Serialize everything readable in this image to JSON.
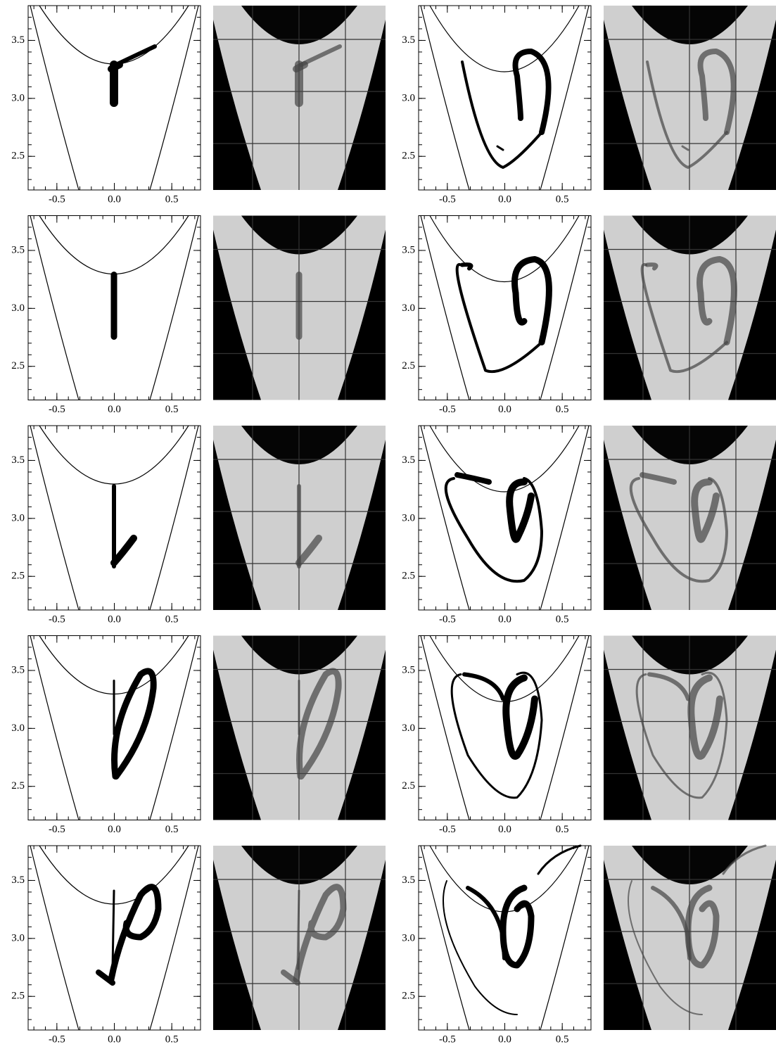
{
  "chart_data": [
    {
      "type": "scatter",
      "xlim": [
        -0.75,
        0.75
      ],
      "ylim": [
        2.21,
        3.8
      ],
      "xticks": [
        -0.5,
        {
          "value": 0,
          "label": "0.0"
        },
        0.5
      ],
      "yticks": [
        2.5,
        {
          "value": 3,
          "label": "3.0"
        },
        3.5
      ]
    },
    {
      "type": "scatter",
      "xlim": [
        -0.75,
        0.75
      ],
      "ylim": [
        2.21,
        3.8
      ],
      "xticks": [
        -0.5,
        {
          "value": 0,
          "label": "0.0"
        },
        0.5
      ],
      "yticks": [
        2.5,
        {
          "value": 3,
          "label": "3.0"
        },
        3.5
      ]
    },
    {
      "type": "scatter",
      "xlim": [
        -0.75,
        0.75
      ],
      "ylim": [
        2.21,
        3.8
      ],
      "xticks": [
        -0.5,
        {
          "value": 0,
          "label": "0.0"
        },
        0.5
      ],
      "yticks": [
        2.5,
        {
          "value": 3,
          "label": "3.0"
        },
        3.5
      ]
    },
    {
      "type": "scatter",
      "xlim": [
        -0.75,
        0.75
      ],
      "ylim": [
        2.21,
        3.8
      ],
      "xticks": [
        -0.5,
        {
          "value": 0,
          "label": "0.0"
        },
        0.5
      ],
      "yticks": [
        2.5,
        {
          "value": 3,
          "label": "3.0"
        },
        3.5
      ]
    },
    {
      "type": "scatter",
      "xlim": [
        -0.75,
        0.75
      ],
      "ylim": [
        2.21,
        3.8
      ],
      "xticks": [
        -0.5,
        {
          "value": 0,
          "label": "0.0"
        },
        0.5
      ],
      "yticks": [
        2.5,
        {
          "value": 3,
          "label": "3.0"
        },
        3.5
      ]
    },
    {
      "type": "scatter",
      "xlim": [
        -0.75,
        0.75
      ],
      "ylim": [
        2.21,
        3.8
      ],
      "xticks": [
        -0.5,
        {
          "value": 0,
          "label": "0.0"
        },
        0.5
      ],
      "yticks": [
        2.5,
        {
          "value": 3,
          "label": "3.0"
        },
        3.5
      ]
    },
    {
      "type": "scatter",
      "xlim": [
        -0.75,
        0.75
      ],
      "ylim": [
        2.21,
        3.8
      ],
      "xticks": [
        -0.5,
        {
          "value": 0,
          "label": "0.0"
        },
        0.5
      ],
      "yticks": [
        2.5,
        {
          "value": 3,
          "label": "3.0"
        },
        3.5
      ]
    },
    {
      "type": "scatter",
      "xlim": [
        -0.75,
        0.75
      ],
      "ylim": [
        2.21,
        3.8
      ],
      "xticks": [
        -0.5,
        {
          "value": 0,
          "label": "0.0"
        },
        0.5
      ],
      "yticks": [
        2.5,
        {
          "value": 3,
          "label": "3.0"
        },
        3.5
      ]
    },
    {
      "type": "scatter",
      "xlim": [
        -0.75,
        0.75
      ],
      "ylim": [
        2.21,
        3.8
      ],
      "xticks": [
        -0.5,
        {
          "value": 0,
          "label": "0.0"
        },
        0.5
      ],
      "yticks": [
        2.5,
        {
          "value": 3,
          "label": "3.0"
        },
        3.5
      ]
    },
    {
      "type": "scatter",
      "xlim": [
        -0.75,
        0.75
      ],
      "ylim": [
        2.21,
        3.8
      ],
      "xticks": [
        -0.5,
        {
          "value": 0,
          "label": "0.0"
        },
        0.5
      ],
      "yticks": [
        2.5,
        {
          "value": 3,
          "label": "3.0"
        },
        3.5
      ]
    }
  ]
}
